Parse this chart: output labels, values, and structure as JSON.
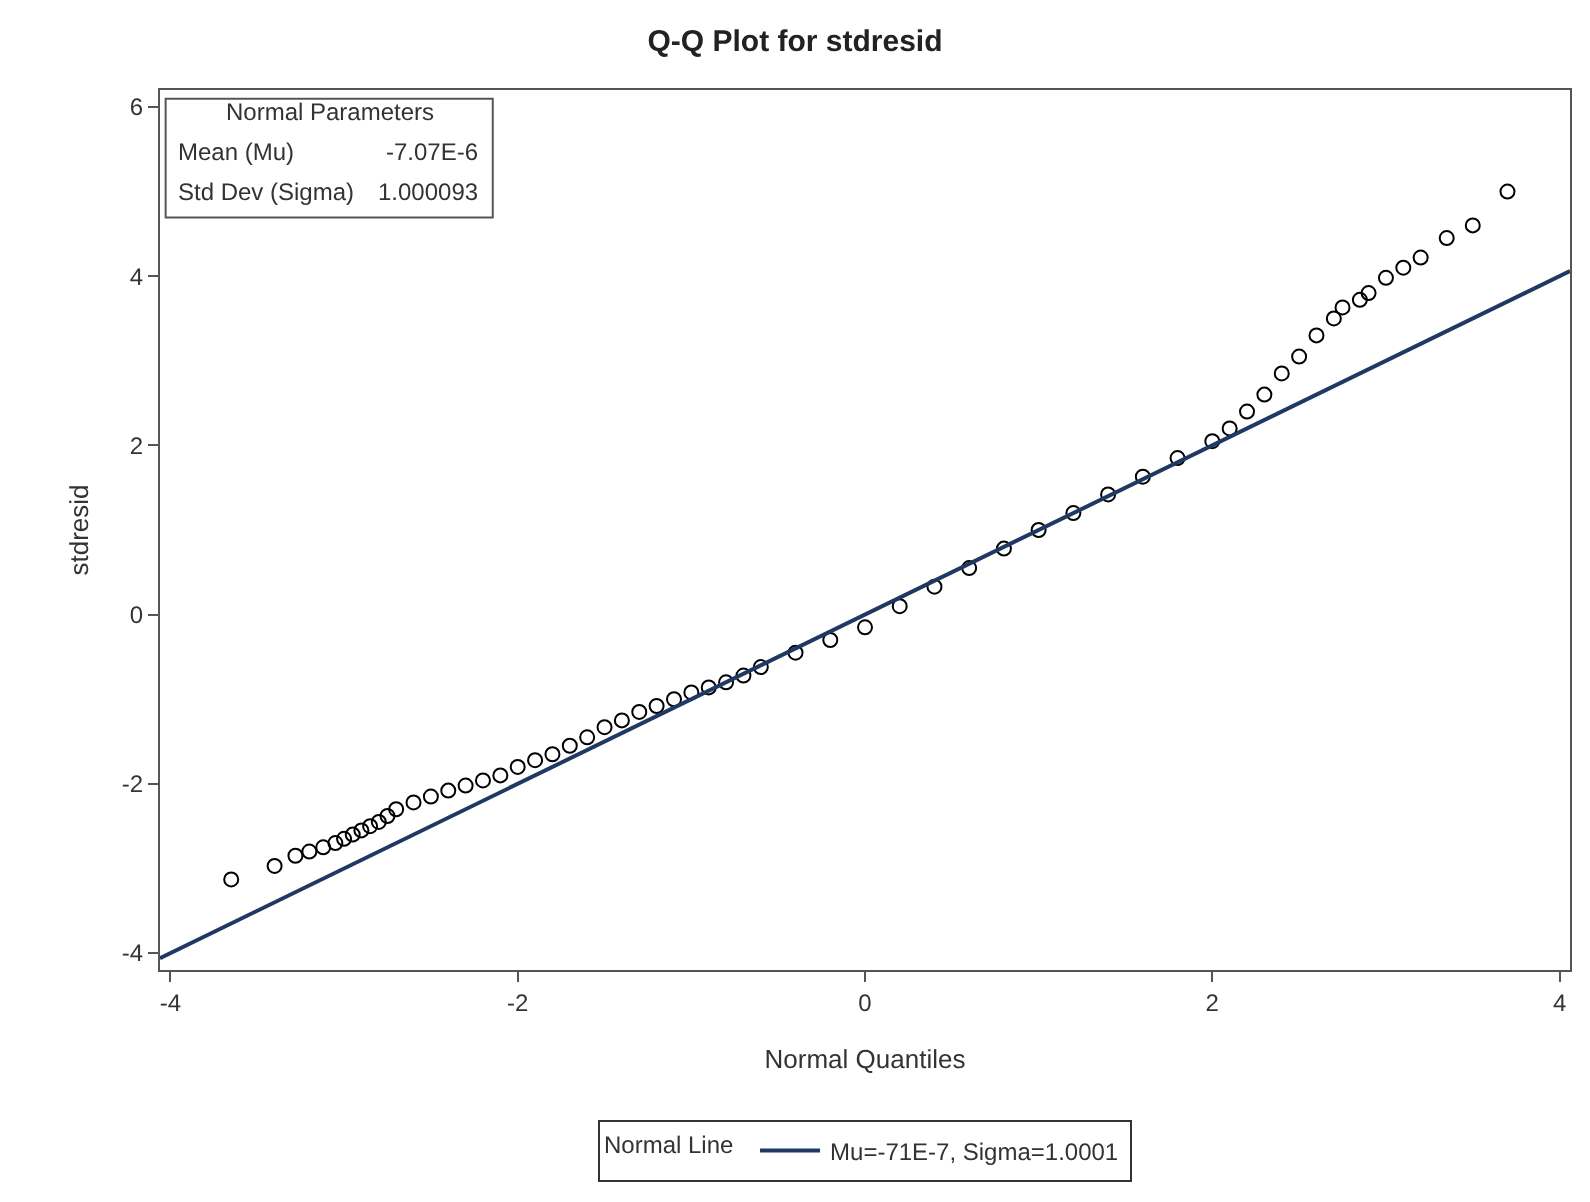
{
  "chart_data": {
    "type": "scatter",
    "title": "Q-Q Plot for stdresid",
    "xlabel": "Normal Quantiles",
    "ylabel": "stdresid",
    "legend_title": "Normal Line",
    "xlim": [
      -4.06,
      4.06
    ],
    "ylim": [
      -4.2,
      6.2
    ],
    "xticks": [
      -4,
      -2,
      0,
      2,
      4
    ],
    "yticks": [
      -4,
      -2,
      0,
      2,
      4,
      6
    ],
    "grid": false,
    "legend": "bottom",
    "marker": "circle",
    "annotations": [
      "Normal Parameters",
      "Mean (Mu)",
      "-7.07E-6",
      "Std Dev (Sigma)",
      "1.000093"
    ],
    "series": [
      {
        "color": "#000000",
        "x": [
          -3.65,
          -3.4,
          -3.28,
          -3.2,
          -3.12,
          -3.05,
          -3.0,
          -2.95,
          -2.9,
          -2.85,
          -2.8,
          -2.75,
          -2.7,
          -2.6,
          -2.5,
          -2.4,
          -2.3,
          -2.2,
          -2.1,
          -2.0,
          -1.9,
          -1.8,
          -1.7,
          -1.6,
          -1.5,
          -1.4,
          -1.3,
          -1.2,
          -1.1,
          -1.0,
          -0.9,
          -0.8,
          -0.7,
          -0.6,
          -0.4,
          -0.2,
          0.0,
          0.2,
          0.4,
          0.6,
          0.8,
          1.0,
          1.2,
          1.4,
          1.6,
          1.8,
          2.0,
          2.1,
          2.2,
          2.3,
          2.4,
          2.5,
          2.6,
          2.7,
          2.75,
          2.85,
          2.9,
          3.0,
          3.1,
          3.2,
          3.35,
          3.5,
          3.7
        ],
        "values": [
          -3.13,
          -2.97,
          -2.85,
          -2.8,
          -2.75,
          -2.7,
          -2.65,
          -2.6,
          -2.55,
          -2.5,
          -2.45,
          -2.38,
          -2.3,
          -2.22,
          -2.15,
          -2.08,
          -2.02,
          -1.96,
          -1.9,
          -1.8,
          -1.72,
          -1.65,
          -1.55,
          -1.45,
          -1.33,
          -1.25,
          -1.15,
          -1.08,
          -1.0,
          -0.92,
          -0.86,
          -0.8,
          -0.72,
          -0.62,
          -0.45,
          -0.3,
          -0.15,
          0.1,
          0.33,
          0.55,
          0.78,
          1.0,
          1.2,
          1.42,
          1.63,
          1.85,
          2.05,
          2.2,
          2.4,
          2.6,
          2.85,
          3.05,
          3.3,
          3.5,
          3.63,
          3.72,
          3.8,
          3.98,
          4.1,
          4.22,
          4.45,
          4.6,
          5.0
        ]
      },
      {
        "type": "line",
        "name": "Mu=-71E-7, Sigma=1.0001",
        "color": "#1f3864",
        "x": [
          -4.06,
          4.06
        ],
        "values": [
          -4.06,
          4.06
        ],
        "marker": "none"
      }
    ]
  }
}
